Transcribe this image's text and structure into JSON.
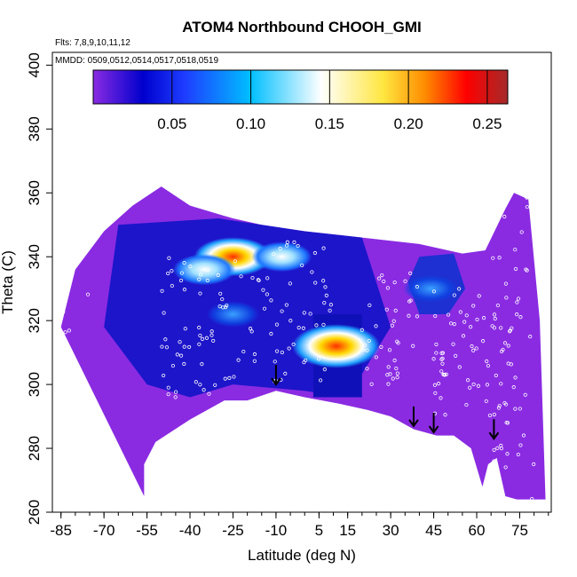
{
  "chart_data": {
    "type": "heatmap",
    "title": "ATOM4 Northbound CHOOH_GMI",
    "annotation_flights": "Flts: 7,8,9,10,11,12",
    "annotation_dates": "MMDD: 0509,0512,0514,0517,0518,0519",
    "xlabel": "Latitude (deg N)",
    "ylabel": "Theta (C)",
    "xlim": [
      -88,
      86
    ],
    "ylim": [
      260,
      404
    ],
    "x_ticks": [
      -85,
      -70,
      -55,
      -40,
      -25,
      -10,
      5,
      15,
      30,
      45,
      60,
      75
    ],
    "x_tick_labels": [
      "-85",
      "-70",
      "-55",
      "-40",
      "-25",
      "-10",
      "5",
      "15",
      "30",
      "45",
      "60",
      "75"
    ],
    "y_ticks": [
      260,
      280,
      300,
      320,
      340,
      360,
      380,
      400
    ],
    "y_tick_labels": [
      "260",
      "280",
      "300",
      "320",
      "340",
      "360",
      "380",
      "400"
    ],
    "colorbar": {
      "range": [
        0.0,
        0.263
      ],
      "ticks": [
        0.05,
        0.1,
        0.15,
        0.2,
        0.25
      ],
      "tick_labels": [
        "0.05",
        "0.10",
        "0.15",
        "0.20",
        "0.25"
      ],
      "colors": [
        "#8a2be2",
        "#0000cd",
        "#00bfff",
        "#ffffff",
        "#ffd700",
        "#ff8c00",
        "#ff0000",
        "#b22222"
      ]
    },
    "field_outline_bottom": [
      [
        -56,
        265
      ],
      [
        -56,
        275
      ],
      [
        -52,
        282
      ],
      [
        -40,
        289
      ],
      [
        -28,
        295
      ],
      [
        -20,
        295
      ],
      [
        -10,
        298
      ],
      [
        0,
        296
      ],
      [
        12,
        294
      ],
      [
        22,
        292
      ],
      [
        30,
        290
      ],
      [
        38,
        286
      ],
      [
        46,
        284
      ],
      [
        52,
        284
      ],
      [
        58,
        280
      ],
      [
        62,
        268
      ],
      [
        64,
        275
      ],
      [
        67,
        277
      ],
      [
        70,
        265
      ],
      [
        74,
        264
      ]
    ],
    "field_outline_top": [
      [
        -85,
        318
      ],
      [
        -80,
        336
      ],
      [
        -70,
        348
      ],
      [
        -60,
        356
      ],
      [
        -50,
        362
      ],
      [
        -40,
        356
      ],
      [
        -25,
        352
      ],
      [
        -15,
        350
      ],
      [
        0,
        348
      ],
      [
        20,
        346
      ],
      [
        40,
        344
      ],
      [
        55,
        341
      ],
      [
        63,
        342
      ],
      [
        70,
        355
      ],
      [
        73,
        360
      ],
      [
        78,
        358
      ],
      [
        82,
        320
      ],
      [
        84,
        264
      ]
    ],
    "hotspots": [
      {
        "lat": -25,
        "theta": 340,
        "value": 0.18
      },
      {
        "lat": -35,
        "theta": 336,
        "value": 0.12
      },
      {
        "lat": -8,
        "theta": 340,
        "value": 0.11
      },
      {
        "lat": 11,
        "theta": 312,
        "value": 0.22
      },
      {
        "lat": 44,
        "theta": 330,
        "value": 0.09
      },
      {
        "lat": -25,
        "theta": 322,
        "value": 0.08
      }
    ],
    "arrows": [
      {
        "lat": -10,
        "theta": 300
      },
      {
        "lat": 38,
        "theta": 287
      },
      {
        "lat": 45,
        "theta": 285
      },
      {
        "lat": 66,
        "theta": 283
      }
    ]
  }
}
